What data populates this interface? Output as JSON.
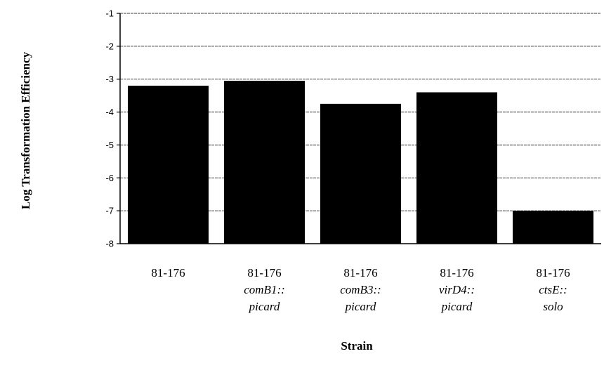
{
  "chart_data": {
    "type": "bar",
    "title": "",
    "xlabel": "Strain",
    "ylabel": "Log Transformation Efficiency",
    "ylim": [
      -8,
      -1
    ],
    "yticks": [
      -1,
      -2,
      -3,
      -4,
      -5,
      -6,
      -7,
      -8
    ],
    "grid": true,
    "bar_color": "#000000",
    "categories": [
      {
        "strain": "81-176",
        "mutation": "",
        "allele": ""
      },
      {
        "strain": "81-176",
        "mutation": "comB1::",
        "allele": "picard"
      },
      {
        "strain": "81-176",
        "mutation": "comB3::",
        "allele": "picard"
      },
      {
        "strain": "81-176",
        "mutation": "virD4::",
        "allele": "picard"
      },
      {
        "strain": "81-176",
        "mutation": "ctsE::",
        "allele": "solo"
      }
    ],
    "values": [
      -3.2,
      -3.05,
      -3.75,
      -3.4,
      -7.0
    ]
  }
}
